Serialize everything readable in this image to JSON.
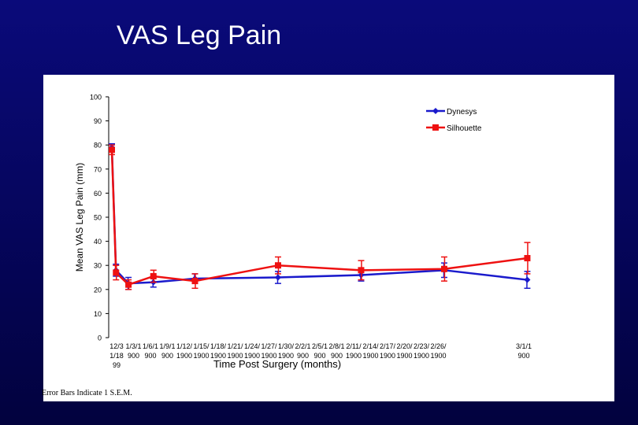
{
  "slide": {
    "title": "VAS Leg Pain",
    "footnote": "Error Bars Indicate 1 S.E.M."
  },
  "chart_data": {
    "type": "line",
    "title": "VAS Leg Pain",
    "xlabel": "Time Post Surgery (months)",
    "ylabel": "Mean VAS Leg Pain (mm)",
    "ylim": [
      0,
      100
    ],
    "yticks": [
      0,
      10,
      20,
      30,
      40,
      50,
      60,
      70,
      80,
      90,
      100
    ],
    "x": [
      0,
      1,
      2,
      3,
      4,
      5,
      6,
      7,
      8,
      9,
      10,
      11,
      12,
      13,
      14,
      15,
      16,
      17,
      18,
      19,
      20,
      21,
      22,
      23,
      24
    ],
    "x_tick_labels": [
      [
        "12/3",
        "1/18",
        "99"
      ],
      [
        "1/3/1",
        "900"
      ],
      [
        "1/6/1",
        "900"
      ],
      [
        "1/9/1",
        "900"
      ],
      [
        "1/12/",
        "1900"
      ],
      [
        "1/15/",
        "1900"
      ],
      [
        "1/18/",
        "1900"
      ],
      [
        "1/21/",
        "1900"
      ],
      [
        "1/24/",
        "1900"
      ],
      [
        "1/27/",
        "1900"
      ],
      [
        "1/30/",
        "1900"
      ],
      [
        "2/2/1",
        "900"
      ],
      [
        "2/5/1",
        "900"
      ],
      [
        "2/8/1",
        "900"
      ],
      [
        "2/11/",
        "1900"
      ],
      [
        "2/14/",
        "1900"
      ],
      [
        "2/17/",
        "1900"
      ],
      [
        "2/20/",
        "1900"
      ],
      [
        "2/23/",
        "1900"
      ],
      [
        "2/26/",
        "1900"
      ],
      [
        "3/1/1",
        "900"
      ]
    ],
    "x_tick_positions": [
      0,
      1,
      2,
      3,
      4,
      5,
      6,
      7,
      8,
      9,
      10,
      11,
      12,
      13,
      14,
      15,
      16,
      17,
      18,
      19,
      21
    ],
    "legend_position": "top-right",
    "series": [
      {
        "name": "Dynesys",
        "color": "#1a1acc",
        "marker": "diamond",
        "points": [
          {
            "x": 0,
            "y": 79,
            "err": 1.5
          },
          {
            "x": 0.1,
            "y": 28,
            "err": 2.5
          },
          {
            "x": 0.4,
            "y": 22.5,
            "err": 2.5
          },
          {
            "x": 1,
            "y": 23,
            "err": 2
          },
          {
            "x": 2,
            "y": 24.5,
            "err": 2
          },
          {
            "x": 4,
            "y": 25,
            "err": 2.5
          },
          {
            "x": 6,
            "y": 26,
            "err": 2.5
          },
          {
            "x": 8,
            "y": 28,
            "err": 3
          },
          {
            "x": 10,
            "y": 24,
            "err": 3.5
          }
        ]
      },
      {
        "name": "Silhouette",
        "color": "#ee1111",
        "marker": "square",
        "points": [
          {
            "x": 0,
            "y": 78,
            "err": 2
          },
          {
            "x": 0.1,
            "y": 27,
            "err": 3
          },
          {
            "x": 0.4,
            "y": 22,
            "err": 2
          },
          {
            "x": 1,
            "y": 25.5,
            "err": 2.5
          },
          {
            "x": 2,
            "y": 23.5,
            "err": 3
          },
          {
            "x": 4,
            "y": 30,
            "err": 3.5
          },
          {
            "x": 6,
            "y": 28,
            "err": 4
          },
          {
            "x": 8,
            "y": 28.5,
            "err": 5
          },
          {
            "x": 10,
            "y": 33,
            "err": 6.5
          }
        ]
      }
    ]
  }
}
